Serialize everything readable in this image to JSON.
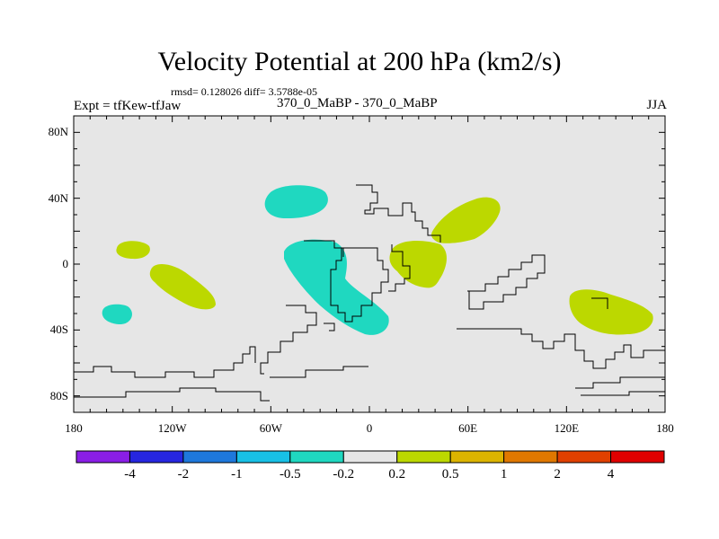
{
  "title": "Velocity Potential at 200 hPa (km2/s)",
  "stats_line": "rmsd= 0.128026 diff= 3.5788e-05",
  "experiment_label": "Expt = tfKew-tfJaw",
  "cases_label": "370_0_MaBP - 370_0_MaBP",
  "season_label": "JJA",
  "map": {
    "projection": "cylindrical equidistant",
    "lon_range": [
      -180,
      180
    ],
    "lat_range": [
      -90,
      90
    ],
    "lat_tick_labels": [
      {
        "lat": 80,
        "text": "80N"
      },
      {
        "lat": 40,
        "text": "40N"
      },
      {
        "lat": 0,
        "text": "0"
      },
      {
        "lat": -40,
        "text": "40S"
      },
      {
        "lat": -80,
        "text": "80S"
      }
    ],
    "lon_tick_labels": [
      {
        "lon": -180,
        "text": "180"
      },
      {
        "lon": -120,
        "text": "120W"
      },
      {
        "lon": -60,
        "text": "60W"
      },
      {
        "lon": 0,
        "text": "0"
      },
      {
        "lon": 60,
        "text": "60E"
      },
      {
        "lon": 120,
        "text": "120E"
      },
      {
        "lon": 180,
        "text": "180"
      }
    ],
    "background_color": "#e6e6e6",
    "coastline_color": "#000000",
    "anomaly_regions": [
      {
        "name": "north-atlantic-negative",
        "bin": "-0.5 to -0.2",
        "color": "#1fd8c0",
        "center_lon": -45,
        "center_lat": 38
      },
      {
        "name": "south-atlantic-negative",
        "bin": "-0.5 to -0.2",
        "color": "#1fd8c0",
        "center_lon": -36,
        "center_lat": -12
      },
      {
        "name": "south-pacific-negative",
        "bin": "-0.5 to -0.2",
        "color": "#1fd8c0",
        "center_lon": -152,
        "center_lat": -30
      },
      {
        "name": "east-pacific-positive-north",
        "bin": "0.2 to 0.5",
        "color": "#bcd800",
        "center_lon": -140,
        "center_lat": 9
      },
      {
        "name": "east-pacific-positive-south",
        "bin": "0.2 to 0.5",
        "color": "#bcd800",
        "center_lon": -112,
        "center_lat": -12
      },
      {
        "name": "africa-positive",
        "bin": "0.2 to 0.5",
        "color": "#bcd800",
        "center_lon": 25,
        "center_lat": 2
      },
      {
        "name": "arabia-positive",
        "bin": "0.2 to 0.5",
        "color": "#bcd800",
        "center_lon": 55,
        "center_lat": 22
      },
      {
        "name": "australia-positive",
        "bin": "0.2 to 0.5",
        "color": "#bcd800",
        "center_lon": 144,
        "center_lat": -28
      }
    ]
  },
  "colorbar": {
    "colors": [
      "#8a1ee6",
      "#2626e0",
      "#1e78dc",
      "#18c0e6",
      "#1fd8c0",
      "#e6e6e6",
      "#bcd800",
      "#dcb400",
      "#e07800",
      "#e04000",
      "#e00000"
    ],
    "labels": [
      "-4",
      "-2",
      "-1",
      "-0.5",
      "-0.2",
      "0.2",
      "0.5",
      "1",
      "2",
      "4"
    ]
  }
}
